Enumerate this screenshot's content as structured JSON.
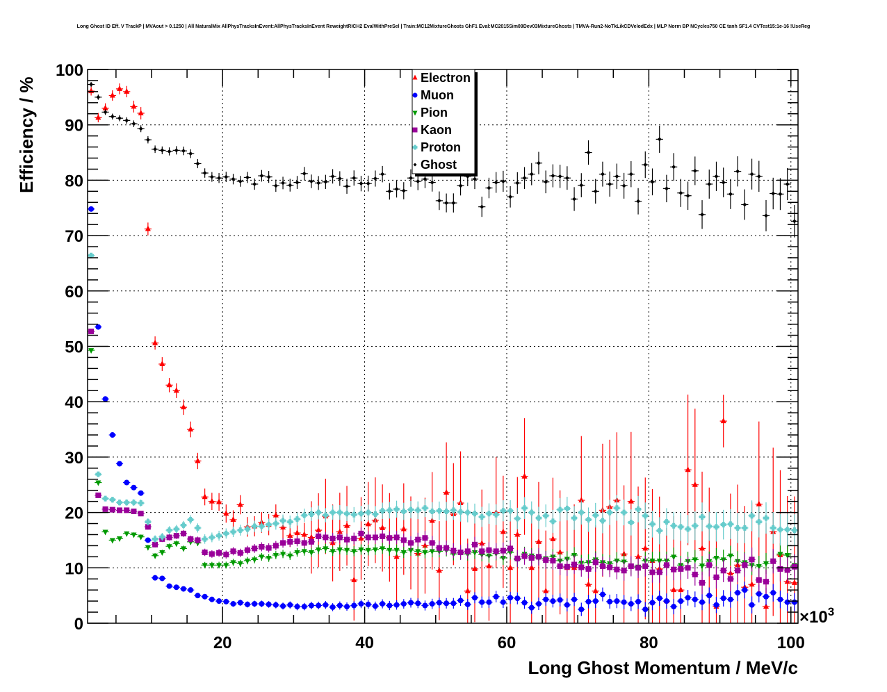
{
  "chart_data": {
    "type": "scatter",
    "title": "Long Ghost ID Eff. V TrackP | MVAout > 0.1250 | All NaturalMix AllPhysTracksInEvent:AllPhysTracksInEvent ReweightRICH2 EvalWithPreSel | Train:MC12MixtureGhosts GhF1 Eval:MC2015Sim09Dev03MixtureGhosts | TMVA-Run2-NoTkLikCDVelodEdx | MLP Norm BP NCycles750 CE tanh SF1.4 CVTest15:1e-16 !UseReg",
    "xlabel": "Long Ghost Momentum / MeV/c",
    "ylabel": "Efficiency / %",
    "x_multiplier": "×10",
    "x_multiplier_exp": "3",
    "xlim": [
      1,
      101
    ],
    "ylim": [
      0,
      100
    ],
    "x_ticks": [
      20,
      40,
      60,
      80,
      100
    ],
    "y_ticks": [
      0,
      10,
      20,
      30,
      40,
      50,
      60,
      70,
      80,
      90,
      100
    ],
    "x_tick_labels": [
      "20",
      "40",
      "60",
      "80",
      "100"
    ],
    "y_tick_labels": [
      "0",
      "10",
      "20",
      "30",
      "40",
      "50",
      "60",
      "70",
      "80",
      "90",
      "100"
    ],
    "grid": true,
    "legend_position": "top-center",
    "bin_start": 1,
    "bin_width": 1,
    "series": [
      {
        "name": "Electron",
        "color": "#ff0000",
        "marker": "triangle-up",
        "err_scale": 0.8,
        "values": [
          96.1,
          91.3,
          93,
          95.3,
          96.5,
          96,
          93.3,
          92.1,
          71.2,
          50.6,
          46.8,
          43,
          42,
          39,
          35,
          29.3,
          22.8,
          22,
          21.9,
          19.8,
          18.7,
          21.4,
          17.4,
          17.5,
          18.2,
          17.8,
          19.5,
          17.3,
          15.8,
          16.3,
          16,
          15.5,
          16.8,
          19.3,
          14.5,
          16.5,
          17.6,
          7.8,
          15.3,
          17.9,
          18.6,
          17.2,
          15.5,
          12,
          17,
          14.5,
          12.6,
          14,
          18.5,
          9.5,
          23.6,
          19.7,
          21.7,
          5.8,
          9.8,
          14.4,
          10.3,
          20,
          16.5,
          10,
          16,
          26.5,
          10,
          14.7,
          5.8,
          15.2,
          12.8,
          10,
          10,
          22.2,
          7,
          5.8,
          20.4,
          21,
          22.2,
          12.5,
          22,
          12,
          13.5,
          11.3,
          9.8,
          4,
          6,
          6,
          27.7,
          25,
          13.5,
          10.5,
          3,
          36.5,
          9,
          10.5,
          6.5,
          7,
          21.5,
          3,
          16.5,
          12.3,
          7.5,
          7.3
        ]
      },
      {
        "name": "Muon",
        "color": "#0000ff",
        "marker": "circle",
        "err_scale": 0.25,
        "values": [
          74.8,
          53.5,
          40.5,
          34,
          28.8,
          25.4,
          24.5,
          23.5,
          15,
          8.2,
          8.1,
          6.7,
          6.5,
          6.2,
          6,
          5,
          4.8,
          4.3,
          4,
          3.9,
          3.5,
          3.7,
          3.4,
          3.5,
          3.5,
          3.4,
          3.3,
          3.1,
          3.3,
          3,
          3,
          3.2,
          3.2,
          3.3,
          2.9,
          3.2,
          3,
          3.2,
          3.5,
          3.4,
          3.1,
          3.5,
          3.2,
          3.3,
          3.5,
          3.7,
          3.6,
          3.2,
          3.5,
          3.7,
          3.6,
          3.6,
          4.1,
          3.4,
          4.6,
          3.8,
          3.8,
          4.8,
          3.8,
          4.6,
          4.5,
          3.7,
          2.8,
          3.5,
          4.3,
          4,
          4.2,
          3.3,
          4.3,
          2.5,
          3.9,
          4,
          5.2,
          3.9,
          4,
          3.8,
          3.5,
          3.9,
          2.5,
          3.7,
          4.5,
          4,
          3,
          4,
          4.6,
          4.3,
          3.8,
          5,
          3.3,
          4.5,
          4.3,
          5.5,
          6,
          3.3,
          5.3,
          4.8,
          5.5,
          4.3,
          3.8,
          3.8
        ]
      },
      {
        "name": "Pion",
        "color": "#009900",
        "marker": "triangle-down",
        "err_scale": 0.3,
        "values": [
          49.3,
          25.4,
          16.5,
          15,
          15.3,
          16.2,
          16,
          15.6,
          13.7,
          12.2,
          12.8,
          13.9,
          14.4,
          13.5,
          14.7,
          14.5,
          10.5,
          10.5,
          10.5,
          10.5,
          11,
          10.8,
          11.3,
          11.5,
          12,
          11.8,
          12.3,
          12.5,
          12.2,
          12.8,
          13,
          12.8,
          13.3,
          13.5,
          13,
          13.3,
          13.2,
          13,
          13.3,
          13.2,
          13.3,
          13.5,
          13.2,
          13.2,
          12.8,
          13.2,
          13,
          12.8,
          13,
          13,
          13.2,
          12.5,
          12.7,
          12.5,
          12.8,
          12.4,
          12.2,
          12.6,
          11.8,
          12.8,
          11.5,
          12.5,
          12.2,
          11.8,
          11.7,
          12,
          11.3,
          11.6,
          12.3,
          10.9,
          11,
          11.5,
          11,
          10.8,
          11.3,
          11.1,
          10.3,
          10.2,
          11.3,
          11.3,
          11.3,
          11.3,
          12,
          10.5,
          11.2,
          11.5,
          10.4,
          11.2,
          11.8,
          11.5,
          12.2,
          11.2,
          11,
          10.5,
          10.3,
          10.8,
          11.2,
          12.5,
          12.3,
          10.5
        ]
      },
      {
        "name": "Kaon",
        "color": "#990099",
        "marker": "square",
        "err_scale": 0.35,
        "values": [
          52.7,
          23.1,
          20.6,
          20.5,
          20.4,
          20.4,
          20.2,
          19.8,
          17.4,
          14.2,
          15.2,
          15.5,
          15.8,
          16.2,
          15.2,
          15,
          12.8,
          12.5,
          12.7,
          12.4,
          13,
          12.7,
          13.2,
          13.5,
          13.8,
          13.6,
          14,
          14.5,
          14.7,
          14.8,
          14.5,
          14.7,
          15.7,
          15.5,
          15.3,
          15.5,
          15.1,
          15.3,
          16.2,
          15.5,
          15.5,
          15.7,
          15.4,
          15.5,
          15,
          14.5,
          15.1,
          15.4,
          14.5,
          13.6,
          13.6,
          13.1,
          12.8,
          13,
          14.2,
          13,
          13.2,
          13,
          13.1,
          13.5,
          11.7,
          12.1,
          11.8,
          12,
          11.4,
          11.3,
          10.3,
          10.2,
          10.6,
          10.1,
          9.8,
          11,
          10.3,
          10.1,
          9.7,
          9.5,
          10.3,
          10,
          10.3,
          9.2,
          9.2,
          10.5,
          9.7,
          9.8,
          10,
          8.8,
          7.3,
          10.5,
          8.3,
          9.5,
          8,
          9.5,
          10.5,
          11.5,
          7.8,
          7.5,
          11.2,
          9.8,
          9.6,
          10.2
        ]
      },
      {
        "name": "Proton",
        "color": "#66cccc",
        "marker": "cross",
        "err_scale": 0.45,
        "values": [
          66.4,
          26.9,
          22.5,
          22.3,
          21.8,
          21.8,
          21.8,
          21.7,
          18.3,
          15.2,
          15.6,
          16.8,
          17,
          17.7,
          18.7,
          17.2,
          15.2,
          15.5,
          15.8,
          16.2,
          16.5,
          16.8,
          17,
          17.5,
          17.5,
          17.8,
          18,
          18.5,
          18.3,
          18.8,
          19.5,
          19.7,
          20,
          19.5,
          20,
          20,
          19.8,
          19.6,
          19.8,
          20,
          19.7,
          20.3,
          20.4,
          20.6,
          20.2,
          20.5,
          20.4,
          20.8,
          20.2,
          20.3,
          20.2,
          20.4,
          20.1,
          20,
          19.8,
          19.2,
          19.8,
          19.6,
          20.3,
          20.3,
          18.9,
          20.8,
          20,
          19,
          19.4,
          18.4,
          20.5,
          20.7,
          19,
          20,
          18.7,
          19.5,
          18.5,
          20,
          20.8,
          20,
          18.2,
          20.6,
          19.4,
          17.9,
          16.7,
          18.3,
          17.6,
          17.4,
          17,
          17.6,
          19.2,
          17.5,
          17.4,
          17.8,
          17.9,
          17.2,
          17.2,
          19.4,
          18.3,
          19,
          17.2,
          16.9,
          16.9,
          16.8
        ]
      },
      {
        "name": "Ghost",
        "color": "#000000",
        "marker": "diamond",
        "err_scale": 0.45,
        "values": [
          97.3,
          95,
          92.3,
          91.5,
          91.2,
          90.8,
          90.2,
          89.3,
          87.3,
          85.6,
          85.4,
          85.2,
          85.4,
          85.3,
          84.8,
          83,
          81.3,
          80.6,
          80.4,
          80.6,
          80.2,
          79.8,
          80.5,
          79.3,
          80.8,
          80.6,
          79,
          79.5,
          79.1,
          79.6,
          81.2,
          79.8,
          79.5,
          79.7,
          80.7,
          80.3,
          78.9,
          80.4,
          79.4,
          79.4,
          80.3,
          81.1,
          78,
          78.4,
          78.1,
          80.4,
          79.8,
          80.2,
          79.6,
          76.3,
          75.9,
          75.9,
          79,
          80.7,
          80.2,
          75.2,
          78.6,
          79.6,
          79.8,
          77,
          79.5,
          80.4,
          81.1,
          83.1,
          79.7,
          80.8,
          80.7,
          80.4,
          76.6,
          79.1,
          85,
          78,
          81.1,
          79.3,
          80.7,
          79,
          81.1,
          76.2,
          82.8,
          79.7,
          87.4,
          78.5,
          82.4,
          77.7,
          77.2,
          81.7,
          73.8,
          79.3,
          80.7,
          79.6,
          77.5,
          81.6,
          75.6,
          81.1,
          80.7,
          73.6,
          77.6,
          77.5,
          79.3,
          72.6
        ]
      }
    ]
  }
}
